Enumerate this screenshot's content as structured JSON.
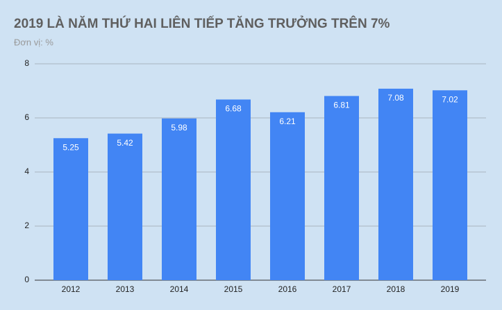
{
  "chart_data": {
    "type": "bar",
    "title": "2019 LÀ NĂM THỨ HAI LIÊN TIẾP TĂNG TRƯỞNG TRÊN 7%",
    "subtitle": "Đơn vị: %",
    "categories": [
      "2012",
      "2013",
      "2014",
      "2015",
      "2016",
      "2017",
      "2018",
      "2019"
    ],
    "values": [
      5.25,
      5.42,
      5.98,
      6.68,
      6.21,
      6.81,
      7.08,
      7.02
    ],
    "color": "#4285f4",
    "ylim": [
      0,
      8
    ],
    "yticks": [
      0,
      2,
      4,
      6,
      8
    ],
    "grid": true
  }
}
